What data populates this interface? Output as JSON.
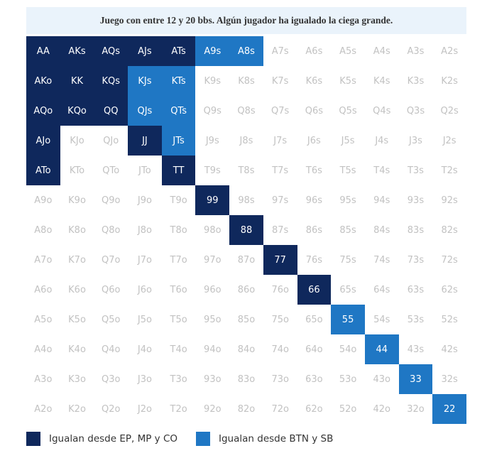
{
  "title": "Juego con entre 12 y 20 bbs. Algún jugador ha igualado la ciega grande.",
  "colors": {
    "dark": "#0f285c",
    "light": "#1f77c4",
    "inactive": "#c2c2c2",
    "title_bg": "#eaf3fb"
  },
  "grid": [
    [
      "AA",
      "AKs",
      "AQs",
      "AJs",
      "ATs",
      "A9s",
      "A8s",
      "A7s",
      "A6s",
      "A5s",
      "A4s",
      "A3s",
      "A2s"
    ],
    [
      "AKo",
      "KK",
      "KQs",
      "KJs",
      "KTs",
      "K9s",
      "K8s",
      "K7s",
      "K6s",
      "K5s",
      "K4s",
      "K3s",
      "K2s"
    ],
    [
      "AQo",
      "KQo",
      "QQ",
      "QJs",
      "QTs",
      "Q9s",
      "Q8s",
      "Q7s",
      "Q6s",
      "Q5s",
      "Q4s",
      "Q3s",
      "Q2s"
    ],
    [
      "AJo",
      "KJo",
      "QJo",
      "JJ",
      "JTs",
      "J9s",
      "J8s",
      "J7s",
      "J6s",
      "J5s",
      "J4s",
      "J3s",
      "J2s"
    ],
    [
      "ATo",
      "KTo",
      "QTo",
      "JTo",
      "TT",
      "T9s",
      "T8s",
      "T7s",
      "T6s",
      "T5s",
      "T4s",
      "T3s",
      "T2s"
    ],
    [
      "A9o",
      "K9o",
      "Q9o",
      "J9o",
      "T9o",
      "99",
      "98s",
      "97s",
      "96s",
      "95s",
      "94s",
      "93s",
      "92s"
    ],
    [
      "A8o",
      "K8o",
      "Q8o",
      "J8o",
      "T8o",
      "98o",
      "88",
      "87s",
      "86s",
      "85s",
      "84s",
      "83s",
      "82s"
    ],
    [
      "A7o",
      "K7o",
      "Q7o",
      "J7o",
      "T7o",
      "97o",
      "87o",
      "77",
      "76s",
      "75s",
      "74s",
      "73s",
      "72s"
    ],
    [
      "A6o",
      "K6o",
      "Q6o",
      "J6o",
      "T6o",
      "96o",
      "86o",
      "76o",
      "66",
      "65s",
      "64s",
      "63s",
      "62s"
    ],
    [
      "A5o",
      "K5o",
      "Q5o",
      "J5o",
      "T5o",
      "95o",
      "85o",
      "75o",
      "65o",
      "55",
      "54s",
      "53s",
      "52s"
    ],
    [
      "A4o",
      "K4o",
      "Q4o",
      "J4o",
      "T4o",
      "94o",
      "84o",
      "74o",
      "64o",
      "54o",
      "44",
      "43s",
      "42s"
    ],
    [
      "A3o",
      "K3o",
      "Q3o",
      "J3o",
      "T3o",
      "93o",
      "83o",
      "73o",
      "63o",
      "53o",
      "43o",
      "33",
      "32s"
    ],
    [
      "A2o",
      "K2o",
      "Q2o",
      "J2o",
      "T2o",
      "92o",
      "82o",
      "72o",
      "62o",
      "52o",
      "42o",
      "32o",
      "22"
    ]
  ],
  "highlight_dark": [
    "AA",
    "AKs",
    "AQs",
    "AJs",
    "ATs",
    "AKo",
    "KK",
    "KQs",
    "AQo",
    "KQo",
    "QQ",
    "AJo",
    "JJ",
    "ATo",
    "TT",
    "99",
    "88",
    "77",
    "66"
  ],
  "highlight_light": [
    "A9s",
    "A8s",
    "KJs",
    "KTs",
    "QJs",
    "QTs",
    "JTs",
    "55",
    "44",
    "33",
    "22"
  ],
  "legend": [
    {
      "label": "Igualan desde EP, MP y CO",
      "key": "dark"
    },
    {
      "label": "Igualan desde BTN y SB",
      "key": "light"
    }
  ]
}
